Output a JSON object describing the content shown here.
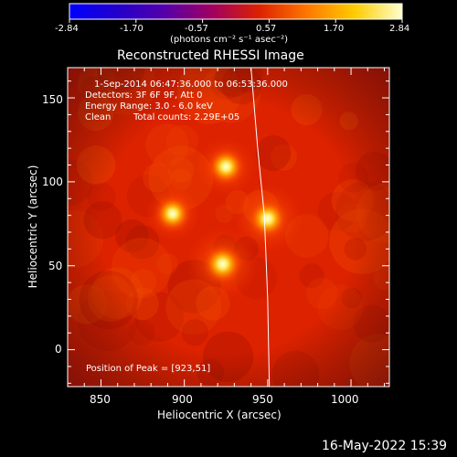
{
  "chart_data": {
    "type": "heatmap",
    "title": "Reconstructed RHESSI Image",
    "xlabel": "Heliocentric X (arcsec)",
    "ylabel": "Heliocentric Y (arcsec)",
    "xlim": [
      830,
      1023
    ],
    "ylim": [
      -22,
      168
    ],
    "xticks": [
      850,
      900,
      950,
      1000
    ],
    "yticks": [
      0,
      50,
      100,
      150
    ],
    "colorbar": {
      "range": [
        -2.84,
        2.84
      ],
      "ticks": [
        "-2.84",
        "-1.70",
        "-0.57",
        "0.57",
        "1.70",
        "2.84"
      ],
      "unit_label": "(photons cm⁻² s⁻¹ asec⁻²)",
      "colors": [
        "#0000ff",
        "#2200cc",
        "#5500aa",
        "#a00060",
        "#dd2200",
        "#ff7700",
        "#ffcc00",
        "#ffffcc"
      ]
    },
    "sources": [
      {
        "x": 923,
        "y": 51,
        "level": 1.0
      },
      {
        "x": 950,
        "y": 78,
        "level": 0.95
      },
      {
        "x": 925,
        "y": 109,
        "level": 0.8
      },
      {
        "x": 893,
        "y": 81,
        "level": 0.75
      }
    ],
    "limb_curve": [
      {
        "x": 940,
        "y": 168
      },
      {
        "x": 944,
        "y": 120
      },
      {
        "x": 948,
        "y": 80
      },
      {
        "x": 950,
        "y": 30
      },
      {
        "x": 951,
        "y": -22
      }
    ],
    "annotations": [
      "1-Sep-2014 06:47:36.000 to 06:53:36.000",
      "Detectors: 3F 6F 9F, Att 0",
      "Energy Range: 3.0 - 6.0 keV",
      "Clean",
      "Total counts: 2.29E+05",
      "Position of Peak = [923,51]"
    ]
  },
  "footer": {
    "timestamp": "16-May-2022 15:39"
  },
  "colors": {
    "background": "#000000",
    "foreground": "#ffffff",
    "map_base": "#dd2200",
    "map_dark": "#8a0800",
    "source_core": "#ffffe0"
  }
}
